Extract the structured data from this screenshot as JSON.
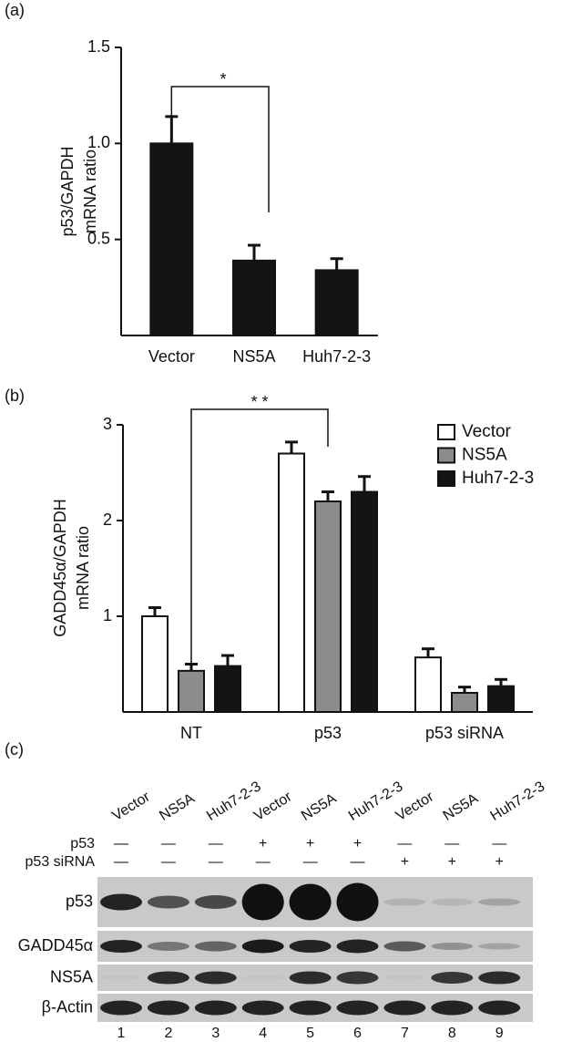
{
  "chart_data": [
    {
      "type": "bar",
      "panel_label": "(a)",
      "ylabel": [
        "p53/GAPDH",
        "mRNA ratio"
      ],
      "categories": [
        "Vector",
        "NS5A",
        "Huh7-2-3"
      ],
      "values": [
        1.0,
        0.39,
        0.34
      ],
      "errors": [
        0.14,
        0.08,
        0.06
      ],
      "color": "#141414",
      "ylim": [
        0,
        1.5
      ],
      "yticks": [
        0.5,
        {
          "value": 1,
          "label": "1.0"
        },
        1.5
      ],
      "annotation": "*"
    },
    {
      "type": "bar",
      "panel_label": "(b)",
      "ylabel": [
        "GADD45α/GAPDH",
        "mRNA ratio"
      ],
      "categories": [
        "NT",
        "p53",
        "p53 siRNA"
      ],
      "series": [
        {
          "name": "Vector",
          "color": "#ffffff",
          "values": [
            1.0,
            2.7,
            0.57
          ],
          "errors": [
            0.09,
            0.12,
            0.09
          ]
        },
        {
          "name": "NS5A",
          "color": "#8c8c8c",
          "values": [
            0.43,
            2.2,
            0.2
          ],
          "errors": [
            0.07,
            0.1,
            0.06
          ]
        },
        {
          "name": "Huh7-2-3",
          "color": "#141414",
          "values": [
            0.48,
            2.3,
            0.27
          ],
          "errors": [
            0.11,
            0.16,
            0.07
          ]
        }
      ],
      "ylim": [
        0,
        3
      ],
      "yticks": [
        1,
        2,
        3
      ],
      "legend": "upper right",
      "annotation": "* *"
    }
  ],
  "blot": {
    "panel_label": "(c)",
    "lanes": [
      "Vector",
      "NS5A",
      "Huh7-2-3",
      "Vector",
      "NS5A",
      "Huh7-2-3",
      "Vector",
      "NS5A",
      "Huh7-2-3"
    ],
    "conditions": [
      {
        "label": "p53",
        "signs": [
          "—",
          "—",
          "—",
          "+",
          "+",
          "+",
          "—",
          "—",
          "—"
        ]
      },
      {
        "label": "p53 siRNA",
        "signs": [
          "—",
          "—",
          "—",
          "—",
          "—",
          "—",
          "+",
          "+",
          "+"
        ]
      }
    ],
    "rows": [
      "p53",
      "GADD45α",
      "NS5A",
      "β-Actin"
    ],
    "lane_numbers": [
      1,
      2,
      3,
      4,
      5,
      6,
      7,
      8,
      9
    ]
  }
}
